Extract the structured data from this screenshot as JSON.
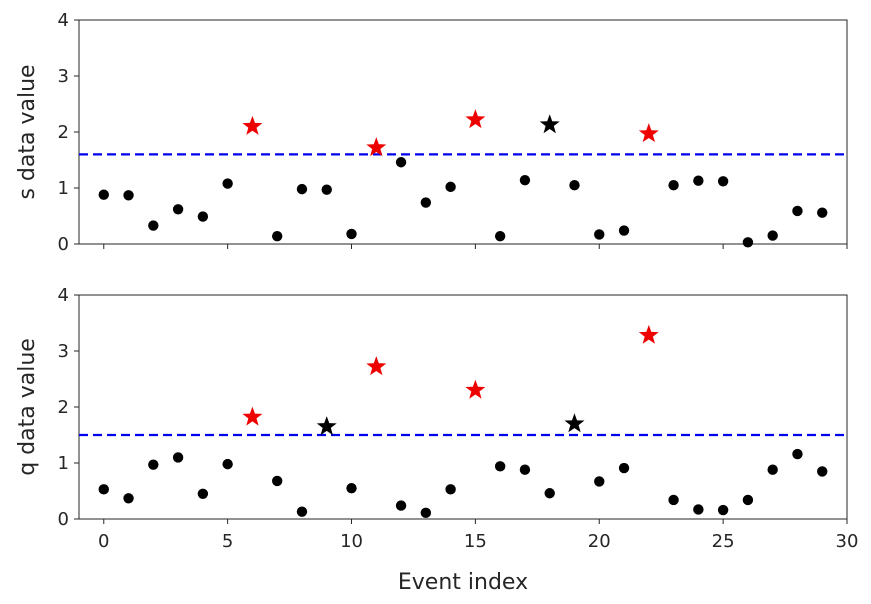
{
  "chart_data": [
    {
      "type": "scatter",
      "ylabel": "s data value",
      "xlabel": "",
      "xlim": [
        -1,
        30
      ],
      "ylim": [
        0,
        4
      ],
      "xticks": [
        0,
        5,
        10,
        15,
        20,
        25,
        30
      ],
      "yticks": [
        0,
        1,
        2,
        3,
        4
      ],
      "show_xtick_labels": false,
      "threshold": 1.6,
      "threshold_color": "#0000ee",
      "x": [
        0,
        1,
        2,
        3,
        4,
        5,
        6,
        7,
        8,
        9,
        10,
        11,
        12,
        13,
        14,
        15,
        16,
        17,
        18,
        19,
        20,
        21,
        22,
        23,
        24,
        25,
        26,
        27,
        28,
        29
      ],
      "y": [
        0.88,
        0.87,
        0.33,
        0.62,
        0.49,
        1.08,
        2.1,
        0.14,
        0.98,
        0.97,
        0.18,
        1.72,
        1.46,
        0.74,
        1.02,
        2.22,
        0.14,
        1.14,
        2.13,
        1.05,
        0.17,
        0.24,
        1.97,
        1.05,
        1.13,
        1.12,
        0.03,
        0.15,
        0.59,
        0.56
      ],
      "marker": [
        "dot",
        "dot",
        "dot",
        "dot",
        "dot",
        "dot",
        "red-star",
        "dot",
        "dot",
        "dot",
        "dot",
        "red-star",
        "dot",
        "dot",
        "dot",
        "red-star",
        "dot",
        "dot",
        "black-star",
        "dot",
        "dot",
        "dot",
        "red-star",
        "dot",
        "dot",
        "dot",
        "dot",
        "dot",
        "dot",
        "dot"
      ]
    },
    {
      "type": "scatter",
      "ylabel": "q data value",
      "xlabel": "Event index",
      "xlim": [
        -1,
        30
      ],
      "ylim": [
        0,
        4
      ],
      "xticks": [
        0,
        5,
        10,
        15,
        20,
        25,
        30
      ],
      "yticks": [
        0,
        1,
        2,
        3,
        4
      ],
      "show_xtick_labels": true,
      "threshold": 1.5,
      "threshold_color": "#0000ee",
      "x": [
        0,
        1,
        2,
        3,
        4,
        5,
        6,
        7,
        8,
        9,
        10,
        11,
        12,
        13,
        14,
        15,
        16,
        17,
        18,
        19,
        20,
        21,
        22,
        23,
        24,
        25,
        26,
        27,
        28,
        29
      ],
      "y": [
        0.53,
        0.37,
        0.97,
        1.1,
        0.45,
        0.98,
        1.82,
        0.68,
        0.13,
        1.65,
        0.55,
        2.72,
        0.24,
        0.11,
        0.53,
        2.3,
        0.94,
        0.88,
        0.46,
        1.7,
        0.67,
        0.91,
        3.28,
        0.34,
        0.17,
        0.16,
        0.34,
        0.88,
        1.16,
        0.85
      ],
      "marker": [
        "dot",
        "dot",
        "dot",
        "dot",
        "dot",
        "dot",
        "red-star",
        "dot",
        "dot",
        "black-star",
        "dot",
        "red-star",
        "dot",
        "dot",
        "dot",
        "red-star",
        "dot",
        "dot",
        "dot",
        "black-star",
        "dot",
        "dot",
        "red-star",
        "dot",
        "dot",
        "dot",
        "dot",
        "dot",
        "dot",
        "dot"
      ]
    }
  ],
  "colors": {
    "dot": "#000000",
    "red-star": "#ee0000",
    "black-star": "#000000",
    "axes": "#262626"
  }
}
